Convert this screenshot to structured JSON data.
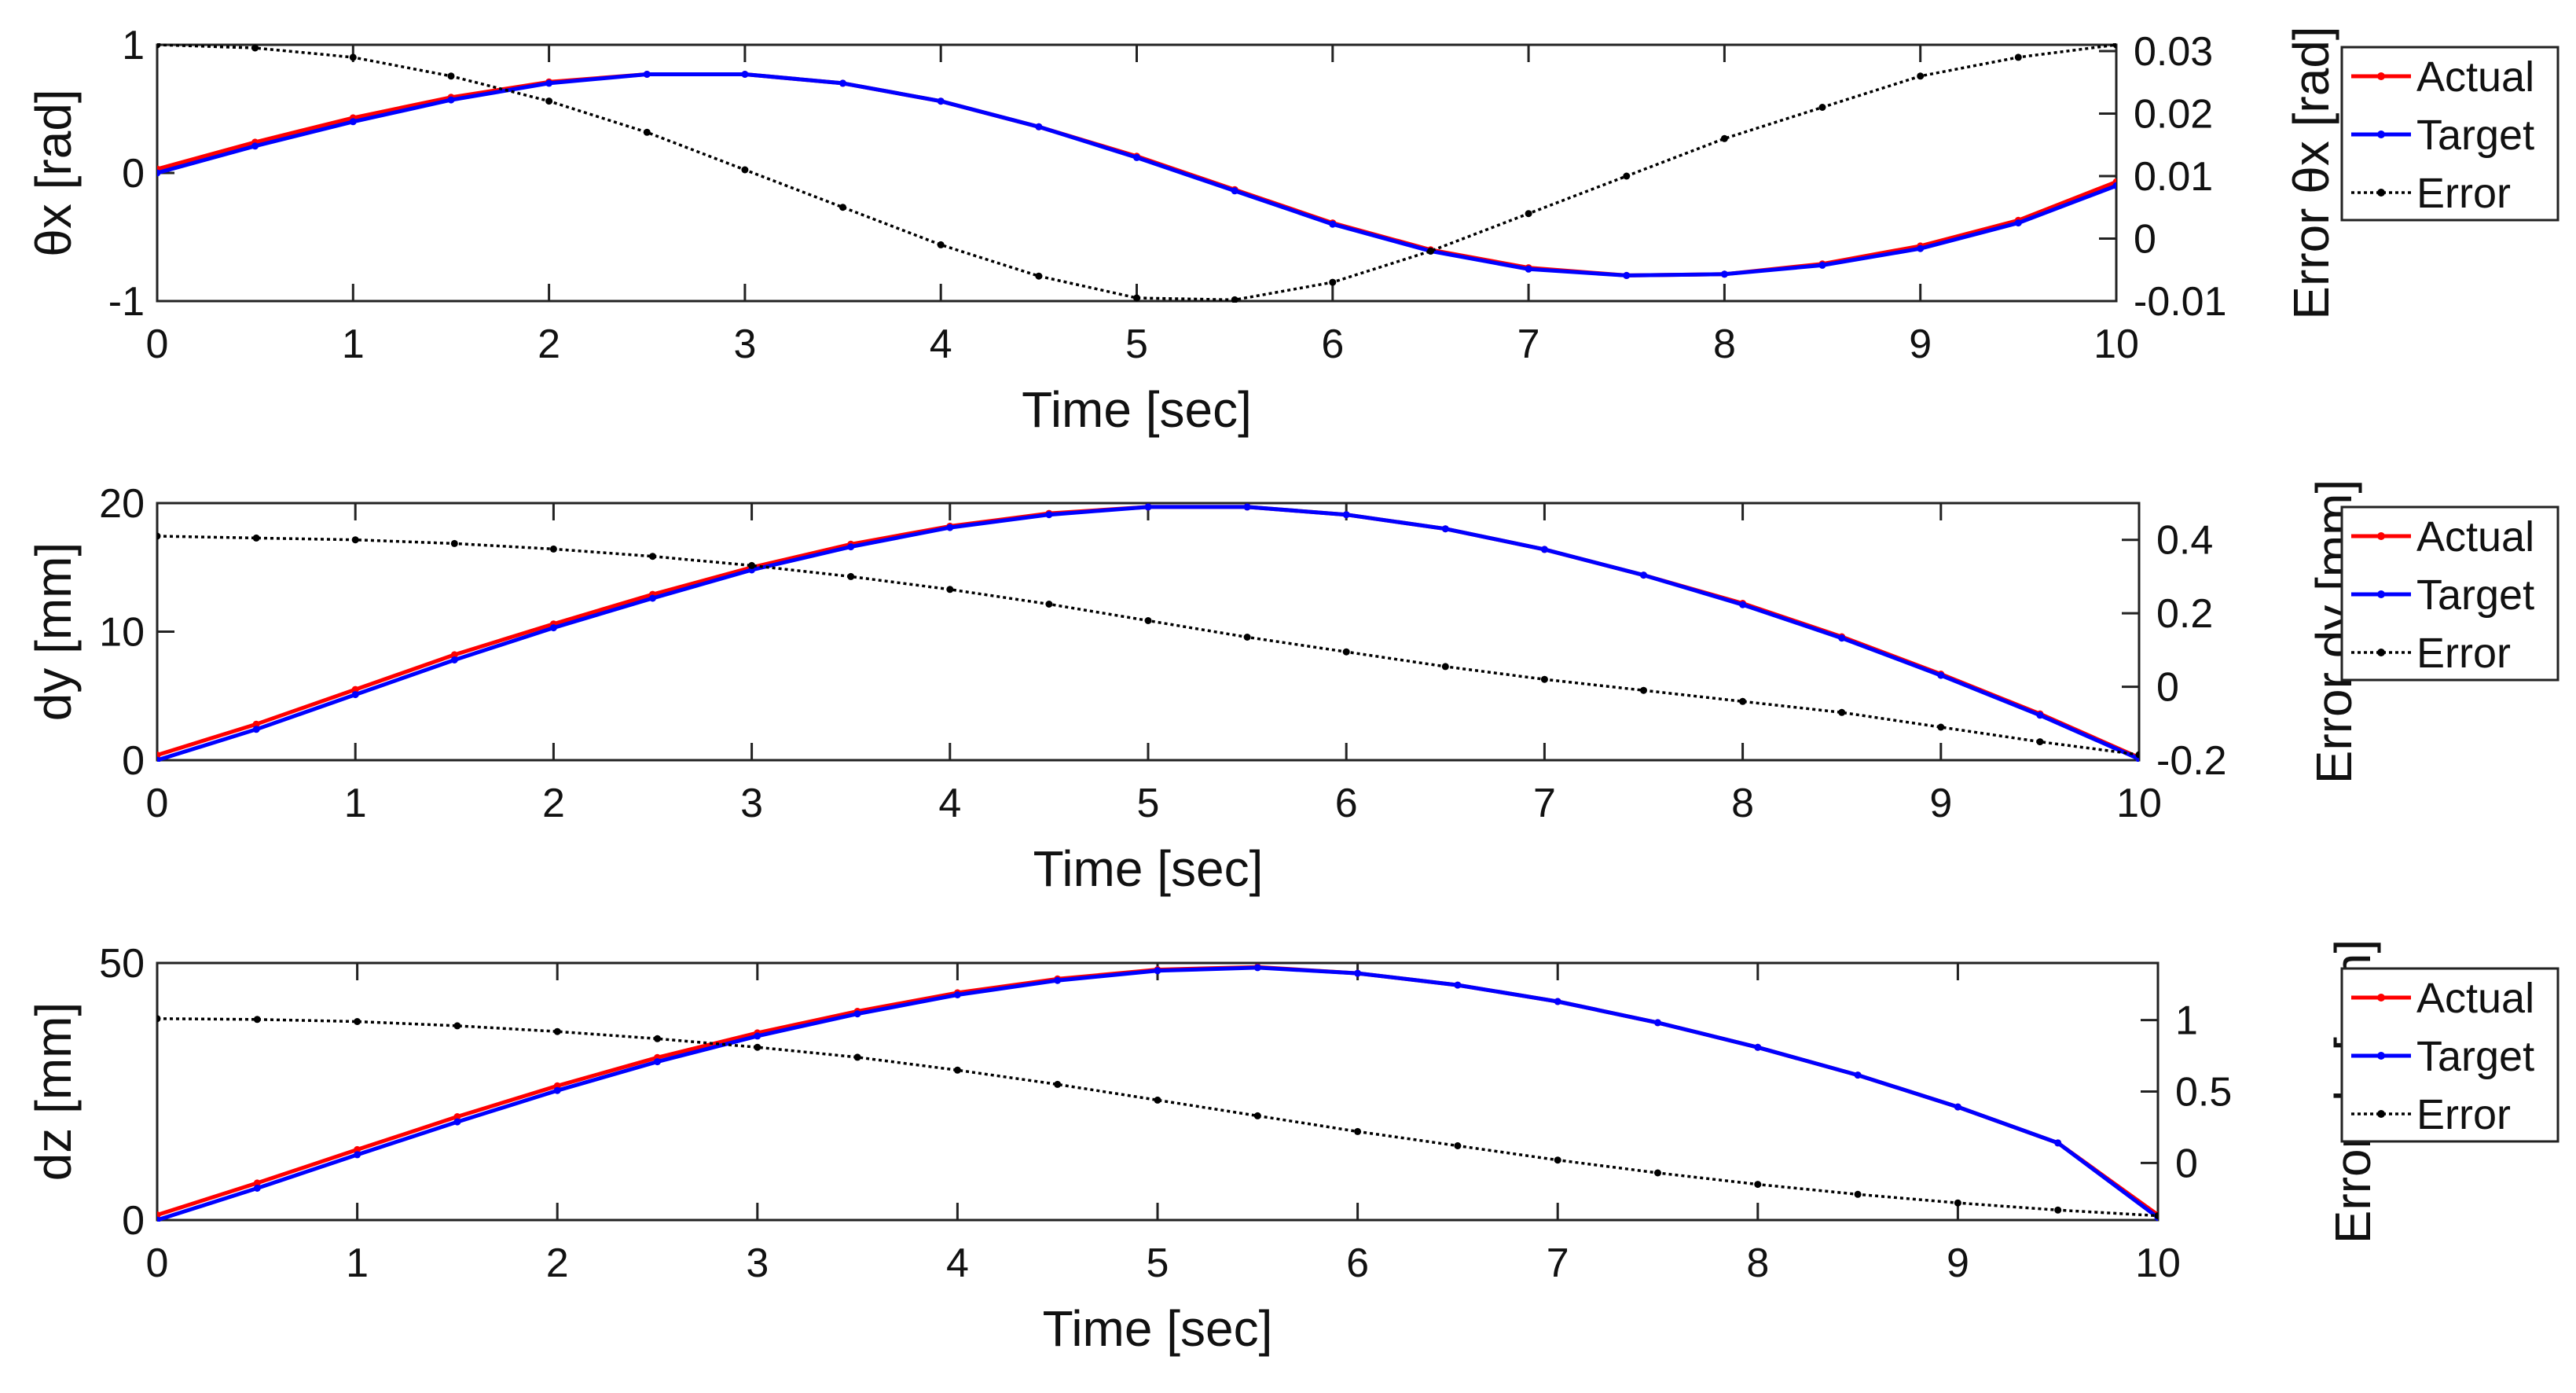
{
  "chart_data": [
    {
      "type": "line",
      "xlabel": "Time [sec]",
      "ylabel": "θx [rad]",
      "ylabel_right": "Error θx [rad]",
      "xlim": [
        0,
        10
      ],
      "ylim": [
        -1,
        1
      ],
      "ylim_right": [
        -0.01,
        0.031
      ],
      "xticks": [
        0,
        1,
        2,
        3,
        4,
        5,
        6,
        7,
        8,
        9,
        10
      ],
      "yticks": [
        -1,
        0,
        1
      ],
      "yticks_right": [
        -0.01,
        0,
        0.01,
        0.02,
        0.03
      ],
      "ytick_labels_right": [
        "-0.01",
        "0",
        "0.01",
        "0.02",
        "0.03"
      ],
      "grid": false,
      "legend_placement": "outside-right",
      "x": [
        0,
        0.5,
        1,
        1.5,
        2,
        2.5,
        3,
        3.5,
        4,
        4.5,
        5,
        5.5,
        6,
        6.5,
        7,
        7.5,
        8,
        8.5,
        9,
        9.5,
        10
      ],
      "series": [
        {
          "name": "Actual",
          "axis": "left",
          "color": "#ff0000",
          "values": [
            0.03,
            0.24,
            0.43,
            0.59,
            0.71,
            0.77,
            0.77,
            0.7,
            0.56,
            0.36,
            0.13,
            -0.13,
            -0.39,
            -0.6,
            -0.74,
            -0.8,
            -0.79,
            -0.71,
            -0.57,
            -0.37,
            -0.07
          ]
        },
        {
          "name": "Target",
          "axis": "left",
          "color": "#0000ff",
          "values": [
            0.0,
            0.21,
            0.4,
            0.57,
            0.7,
            0.77,
            0.77,
            0.7,
            0.56,
            0.36,
            0.12,
            -0.14,
            -0.4,
            -0.61,
            -0.75,
            -0.8,
            -0.79,
            -0.72,
            -0.59,
            -0.39,
            -0.1
          ]
        },
        {
          "name": "Error",
          "axis": "right",
          "color": "#000000",
          "values": [
            0.031,
            0.0305,
            0.029,
            0.026,
            0.022,
            0.017,
            0.011,
            0.005,
            -0.001,
            -0.006,
            -0.0095,
            -0.0098,
            -0.007,
            -0.002,
            0.004,
            0.01,
            0.016,
            0.021,
            0.026,
            0.029,
            0.031
          ]
        }
      ]
    },
    {
      "type": "line",
      "xlabel": "Time [sec]",
      "ylabel": "dy [mm]",
      "ylabel_right": "Error dy [mm]",
      "xlim": [
        0,
        10
      ],
      "ylim": [
        0,
        20
      ],
      "ylim_right": [
        -0.2,
        0.5
      ],
      "xticks": [
        0,
        1,
        2,
        3,
        4,
        5,
        6,
        7,
        8,
        9,
        10
      ],
      "yticks": [
        0,
        10,
        20
      ],
      "yticks_right": [
        -0.2,
        0,
        0.2,
        0.4
      ],
      "ytick_labels_right": [
        "-0.2",
        "0",
        "0.2",
        "0.4"
      ],
      "grid": false,
      "legend_placement": "outside-right",
      "x": [
        0,
        0.5,
        1,
        1.5,
        2,
        2.5,
        3,
        3.5,
        4,
        4.5,
        5,
        5.5,
        6,
        6.5,
        7,
        7.5,
        8,
        8.5,
        9,
        9.5,
        10
      ],
      "series": [
        {
          "name": "Actual",
          "axis": "left",
          "color": "#ff0000",
          "values": [
            0.4,
            2.8,
            5.5,
            8.2,
            10.6,
            12.9,
            15.0,
            16.8,
            18.2,
            19.2,
            19.7,
            19.7,
            19.1,
            18.0,
            16.4,
            14.4,
            12.2,
            9.6,
            6.7,
            3.6,
            0.2
          ]
        },
        {
          "name": "Target",
          "axis": "left",
          "color": "#0000ff",
          "values": [
            0.0,
            2.4,
            5.1,
            7.8,
            10.3,
            12.6,
            14.8,
            16.6,
            18.1,
            19.1,
            19.7,
            19.7,
            19.1,
            18.0,
            16.4,
            14.4,
            12.1,
            9.5,
            6.6,
            3.5,
            0.1
          ]
        },
        {
          "name": "Error",
          "axis": "right",
          "color": "#000000",
          "values": [
            0.41,
            0.405,
            0.4,
            0.39,
            0.375,
            0.355,
            0.33,
            0.3,
            0.265,
            0.225,
            0.18,
            0.135,
            0.095,
            0.055,
            0.02,
            -0.01,
            -0.04,
            -0.07,
            -0.11,
            -0.15,
            -0.185
          ]
        }
      ]
    },
    {
      "type": "line",
      "xlabel": "Time [sec]",
      "ylabel": "dz [mm]",
      "ylabel_right": "Error dz [mm]",
      "xlim": [
        0,
        10
      ],
      "ylim": [
        0,
        50
      ],
      "ylim_right": [
        -0.4,
        1.4
      ],
      "xticks": [
        0,
        1,
        2,
        3,
        4,
        5,
        6,
        7,
        8,
        9,
        10
      ],
      "yticks": [
        0,
        50
      ],
      "yticks_right": [
        0,
        0.5,
        1
      ],
      "ytick_labels_right": [
        "0",
        "0.5",
        "1"
      ],
      "grid": false,
      "legend_placement": "outside-right",
      "x": [
        0,
        0.5,
        1,
        1.5,
        2,
        2.5,
        3,
        3.5,
        4,
        4.5,
        5,
        5.5,
        6,
        6.5,
        7,
        7.5,
        8,
        8.5,
        9,
        9.5,
        10
      ],
      "series": [
        {
          "name": "Actual",
          "axis": "left",
          "color": "#ff0000",
          "values": [
            1.0,
            7.2,
            13.7,
            20.1,
            26.1,
            31.6,
            36.4,
            40.6,
            44.2,
            46.9,
            48.7,
            49.2,
            48.0,
            45.7,
            42.5,
            38.4,
            33.6,
            28.2,
            22.0,
            15.0,
            1.0
          ]
        },
        {
          "name": "Target",
          "axis": "left",
          "color": "#0000ff",
          "values": [
            0.0,
            6.2,
            12.7,
            19.1,
            25.2,
            30.8,
            35.8,
            40.1,
            43.8,
            46.6,
            48.5,
            49.1,
            48.0,
            45.7,
            42.5,
            38.4,
            33.6,
            28.2,
            22.0,
            15.0,
            0.5
          ]
        },
        {
          "name": "Error",
          "axis": "right",
          "color": "#000000",
          "values": [
            1.01,
            1.005,
            0.99,
            0.96,
            0.92,
            0.87,
            0.81,
            0.74,
            0.65,
            0.55,
            0.44,
            0.33,
            0.22,
            0.12,
            0.02,
            -0.07,
            -0.15,
            -0.22,
            -0.28,
            -0.33,
            -0.37
          ]
        }
      ]
    }
  ]
}
